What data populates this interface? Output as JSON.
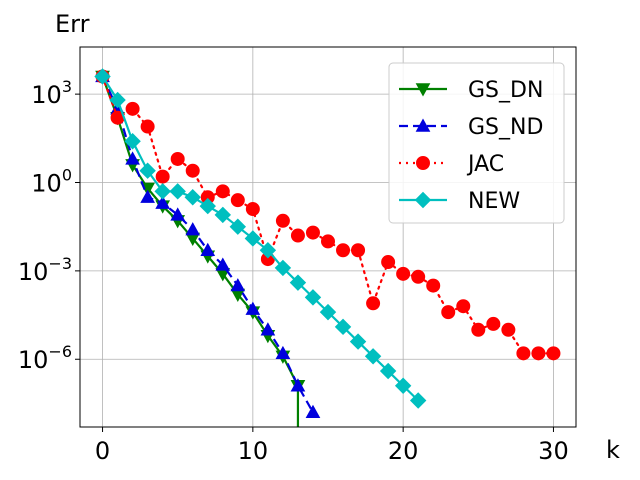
{
  "chart_data": {
    "type": "line",
    "title": "",
    "xlabel": "k",
    "ylabel": "Err",
    "yscale": "log",
    "xlim": [
      -1.5,
      31.5
    ],
    "ylim_log10": [
      -8.3,
      4.6
    ],
    "grid": true,
    "legend_position": "top-right",
    "x_ticks": [
      0,
      10,
      20,
      30
    ],
    "x_tick_labels": [
      "0",
      "10",
      "20",
      "30"
    ],
    "y_ticks_log10": [
      3,
      0,
      -3,
      -6
    ],
    "y_tick_labels": [
      {
        "base": "10",
        "exp": "3"
      },
      {
        "base": "10",
        "exp": "0"
      },
      {
        "base": "10",
        "exp": "−3"
      },
      {
        "base": "10",
        "exp": "−6"
      }
    ],
    "series": [
      {
        "name": "GS_DN",
        "color": "#008000",
        "dash": "solid",
        "marker": "triangle-down",
        "x": [
          0,
          1,
          2,
          3,
          4,
          5,
          6,
          7,
          8,
          9,
          10,
          11,
          12,
          13,
          13
        ],
        "log10_y": [
          3.6,
          2.2,
          0.6,
          -0.2,
          -0.8,
          -1.3,
          -1.9,
          -2.5,
          -3.1,
          -3.8,
          -4.4,
          -5.2,
          -5.9,
          -6.9,
          -8.3
        ]
      },
      {
        "name": "GS_ND",
        "color": "#0000dd",
        "dash": "dashed",
        "marker": "triangle-up",
        "x": [
          0,
          1,
          2,
          3,
          4,
          5,
          6,
          7,
          8,
          9,
          10,
          11,
          12,
          13,
          14
        ],
        "log10_y": [
          3.6,
          2.5,
          0.8,
          -0.5,
          -0.7,
          -1.1,
          -1.6,
          -2.3,
          -2.8,
          -3.5,
          -4.3,
          -5.0,
          -5.8,
          -6.9,
          -7.8
        ]
      },
      {
        "name": "JAC",
        "color": "#ff0000",
        "dash": "dotted",
        "marker": "circle",
        "x": [
          0,
          1,
          2,
          3,
          4,
          5,
          6,
          7,
          8,
          9,
          10,
          11,
          12,
          13,
          14,
          15,
          16,
          17,
          18,
          19,
          20,
          21,
          22,
          23,
          24,
          25,
          26,
          27,
          28,
          29,
          30
        ],
        "log10_y": [
          3.6,
          2.2,
          2.5,
          1.9,
          0.2,
          0.8,
          0.4,
          -0.5,
          -0.3,
          -0.6,
          -0.9,
          -2.6,
          -1.3,
          -1.8,
          -1.7,
          -2.0,
          -2.3,
          -2.3,
          -4.1,
          -2.7,
          -3.1,
          -3.2,
          -3.5,
          -4.4,
          -4.2,
          -5.0,
          -4.8,
          -5.0,
          -5.8,
          -5.8,
          -5.8
        ]
      },
      {
        "name": "NEW",
        "color": "#00bfbf",
        "dash": "solid",
        "marker": "diamond",
        "x": [
          0,
          1,
          2,
          3,
          4,
          5,
          6,
          7,
          8,
          9,
          10,
          11,
          12,
          13,
          14,
          15,
          16,
          17,
          18,
          19,
          20,
          21
        ],
        "log10_y": [
          3.6,
          2.8,
          1.4,
          0.4,
          -0.3,
          -0.3,
          -0.5,
          -0.8,
          -1.1,
          -1.5,
          -1.9,
          -2.3,
          -2.9,
          -3.4,
          -3.9,
          -4.4,
          -4.9,
          -5.4,
          -5.9,
          -6.4,
          -6.9,
          -7.4
        ]
      }
    ]
  }
}
